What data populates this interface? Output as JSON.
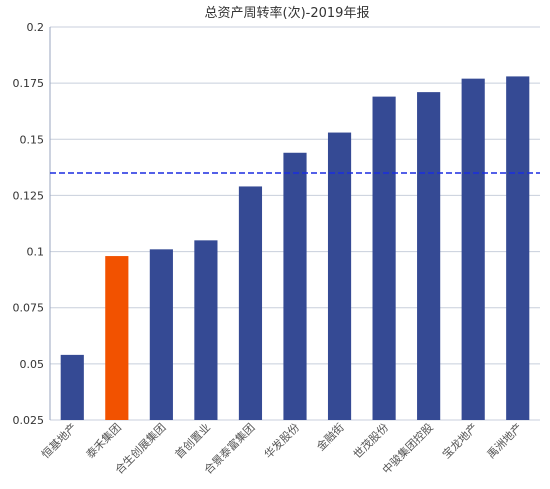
{
  "chart_data": {
    "type": "bar",
    "title": "总资产周转率(次)-2019年报",
    "categories": [
      "恒基地产",
      "泰禾集团",
      "合生创展集团",
      "首创置业",
      "合景泰富集团",
      "华发股份",
      "金融街",
      "世茂股份",
      "中骏集团控股",
      "宝龙地产",
      "禹洲地产"
    ],
    "values": [
      0.054,
      0.098,
      0.101,
      0.105,
      0.129,
      0.144,
      0.153,
      0.169,
      0.171,
      0.177,
      0.178
    ],
    "highlight_category": "泰禾集团",
    "reference_line": 0.135,
    "yticks": [
      "0.025",
      "0.05",
      "0.075",
      "0.1",
      "0.125",
      "0.15",
      "0.175",
      "0.2"
    ],
    "ylim": [
      0.025,
      0.2
    ],
    "grid": true,
    "colors": {
      "bar": "#354a94",
      "highlight": "#f25200",
      "reference_line": "#1a2ce0",
      "grid": "#c8cfdc",
      "axis": "#9aa6bf"
    }
  }
}
